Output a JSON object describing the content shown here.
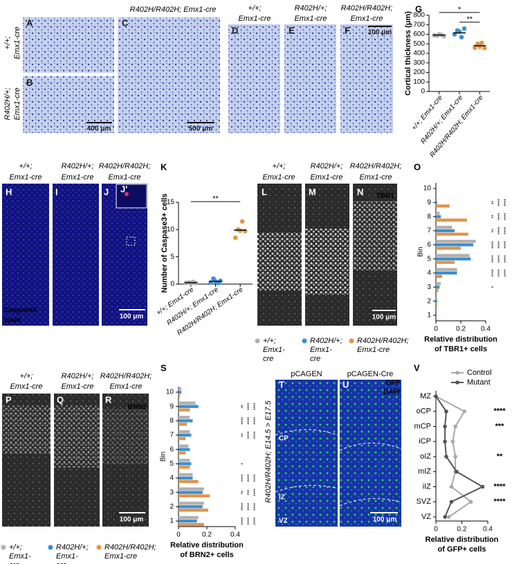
{
  "figure": {
    "panel_labels": [
      "A",
      "B",
      "C",
      "D",
      "E",
      "F",
      "G",
      "H",
      "I",
      "J",
      "J'",
      "K",
      "L",
      "M",
      "N",
      "O",
      "P",
      "Q",
      "R",
      "S",
      "T",
      "U",
      "V"
    ],
    "genotype_lines": [
      [
        "+/+;",
        "Emx1-cre"
      ],
      [
        "R402H/+;",
        "Emx1-cre"
      ],
      [
        "R402H/R402H;",
        "Emx1-cre"
      ]
    ],
    "panel_c_title": "R402H/R402H; Emx1-cre",
    "scale_bars": [
      "400 μm",
      "500 μm",
      "100 μm",
      "100 μm",
      "100 μm",
      "100 μm",
      "100 μm"
    ],
    "stains": [
      "Caspase3",
      "DAPI",
      "TBR1",
      "BRN2",
      "GFP",
      "DAPI"
    ],
    "conditions": [
      "pCAGEN",
      "pCAGEN-Cre"
    ],
    "zones": [
      "CP",
      "IZ",
      "VZ"
    ],
    "side_label": "R402H/R402H; E14.5 > E17.5"
  },
  "chart_data": [
    {
      "type": "dot",
      "y_label": "Cortical thickness (μm)",
      "categories": [
        "+/+; Emx1-cre",
        "R402H/+; Emx1-cre",
        "R402H/R402H; Emx1-cre"
      ],
      "values": [
        592,
        615,
        480
      ],
      "points": [
        [
          590,
          585,
          600,
          595,
          580
        ],
        [
          600,
          640,
          630,
          570,
          660
        ],
        [
          460,
          500,
          470,
          510,
          455
        ]
      ],
      "colors": [
        "#b0b0b0",
        "#3d8fd1",
        "#e0954a"
      ],
      "ylim": [
        0,
        800
      ],
      "yticks": [
        0,
        100,
        200,
        300,
        400,
        500,
        600,
        700,
        800
      ],
      "annotations": [
        "*",
        "**"
      ]
    },
    {
      "type": "dot",
      "y_label": "Number of Caspase3+ cells",
      "categories": [
        "+/+; Emx1-cre",
        "R402H/+; Emx1-cre",
        "R402H/R402H; Emx1-cre"
      ],
      "values": [
        0.25,
        0.5,
        9.9
      ],
      "points": [
        [
          0.2,
          0.3,
          0.1,
          0.4,
          0.2
        ],
        [
          0.3,
          1.0,
          0.5,
          0.2,
          0.6
        ],
        [
          8.5,
          10,
          9.8,
          11.5,
          9.7
        ]
      ],
      "colors": [
        "#b0b0b0",
        "#3d8fd1",
        "#e0954a"
      ],
      "ylim": [
        0,
        15
      ],
      "yticks": [
        0,
        5,
        10,
        15
      ],
      "annotations": [
        "**"
      ]
    },
    {
      "type": "hbar",
      "y_label": "Bin",
      "x_label": [
        "Relative distribution",
        "of TBR1+ cells"
      ],
      "categories": [
        1,
        2,
        3,
        4,
        5,
        6,
        7,
        8,
        9,
        10
      ],
      "series": [
        {
          "name": "+/+; Emx1-cre",
          "color": "#b0b0b0",
          "values": [
            0,
            0.01,
            0.04,
            0.17,
            0.27,
            0.32,
            0.13,
            0.03,
            0.01,
            0
          ]
        },
        {
          "name": "R402H/+; Emx1-cre",
          "color": "#3d8fd1",
          "values": [
            0,
            0.01,
            0.03,
            0.17,
            0.28,
            0.3,
            0.15,
            0.04,
            0.01,
            0
          ]
        },
        {
          "name": "R402H/R402H; Emx1-cre",
          "color": "#e0954a",
          "values": [
            0,
            0.01,
            0.02,
            0.05,
            0.15,
            0.2,
            0.26,
            0.25,
            0.11,
            0
          ]
        }
      ],
      "xlim": [
        0,
        0.4
      ],
      "xticks": [
        0,
        0.2,
        0.4
      ],
      "annotations": [
        [],
        [],
        [
          "*"
        ],
        [
          "****",
          "****",
          "****"
        ],
        [
          "****",
          "****",
          "****"
        ],
        [
          "****",
          "****",
          "****"
        ],
        [
          "**",
          "****",
          "****"
        ],
        [
          "**",
          "****",
          "****"
        ],
        [
          "**",
          "****",
          "****"
        ],
        []
      ]
    },
    {
      "type": "hbar",
      "y_label": "Bin",
      "x_label": [
        "Relative distribution",
        "of BRN2+ cells"
      ],
      "categories": [
        1,
        2,
        3,
        4,
        5,
        6,
        7,
        8,
        9,
        10
      ],
      "series": [
        {
          "name": "+/+; Emx1-cre",
          "color": "#b0b0b0",
          "values": [
            0.14,
            0.18,
            0.18,
            0.1,
            0.08,
            0.07,
            0.08,
            0.08,
            0.12,
            0.02
          ]
        },
        {
          "name": "R402H/+; Emx1-cre",
          "color": "#3d8fd1",
          "values": [
            0.13,
            0.17,
            0.17,
            0.1,
            0.09,
            0.08,
            0.09,
            0.1,
            0.14,
            0.02
          ]
        },
        {
          "name": "R402H/R402H; Emx1-cre",
          "color": "#e0954a",
          "values": [
            0.18,
            0.21,
            0.22,
            0.14,
            0.08,
            0.05,
            0.05,
            0.06,
            0.08,
            0.01
          ]
        }
      ],
      "xlim": [
        0,
        0.4
      ],
      "xticks": [
        0,
        0.2,
        0.4
      ],
      "annotations": [
        [
          "****",
          "****",
          "****"
        ],
        [
          "****",
          "****",
          "****"
        ],
        [
          "**",
          "***",
          "****"
        ],
        [
          "****",
          "****",
          "****"
        ],
        [
          "*"
        ],
        [],
        [
          "**",
          "****",
          "****"
        ],
        [
          "****",
          "****",
          "****"
        ],
        [
          "**",
          "****",
          "****"
        ],
        []
      ]
    },
    {
      "type": "line",
      "x_label": [
        "Relative distribution",
        "of GFP+ cells"
      ],
      "categories": [
        "MZ",
        "oCP",
        "mCP",
        "iCP",
        "oIZ",
        "mIZ",
        "iIZ",
        "SVZ",
        "VZ"
      ],
      "series": [
        {
          "name": "Control",
          "color": "#a8a8a8",
          "values": [
            0,
            0.22,
            0.15,
            0.13,
            0.15,
            0.15,
            0.12,
            0.27,
            0.1
          ]
        },
        {
          "name": "Mutant",
          "color": "#555555",
          "values": [
            0,
            0.08,
            0.07,
            0.07,
            0.08,
            0.16,
            0.36,
            0.12,
            0.07
          ]
        }
      ],
      "xlim": [
        0,
        0.4
      ],
      "xticks": [
        0,
        0.2,
        0.4
      ],
      "legend": "top",
      "annotations": [
        null,
        "****",
        "***",
        null,
        "**",
        null,
        "****",
        "****",
        null
      ]
    }
  ]
}
